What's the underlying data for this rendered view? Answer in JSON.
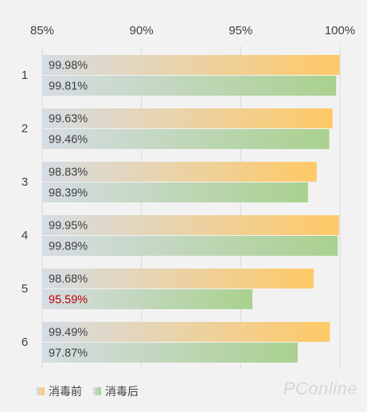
{
  "chart_data": {
    "type": "bar",
    "orientation": "horizontal",
    "categories": [
      "1",
      "2",
      "3",
      "4",
      "5",
      "6"
    ],
    "series": [
      {
        "name": "消毒前",
        "values": [
          99.98,
          99.63,
          98.83,
          99.95,
          98.68,
          99.49
        ],
        "labels": [
          "99.98%",
          "99.63%",
          "98.83%",
          "99.95%",
          "98.68%",
          "99.49%"
        ]
      },
      {
        "name": "消毒后",
        "values": [
          99.81,
          99.46,
          98.39,
          99.89,
          95.59,
          97.87
        ],
        "labels": [
          "99.81%",
          "99.46%",
          "98.39%",
          "99.89%",
          "95.59%",
          "97.87%"
        ]
      }
    ],
    "xlim": [
      85,
      100
    ],
    "xticks": [
      85,
      90,
      95,
      100
    ],
    "xtick_labels": [
      "85%",
      "90%",
      "95%",
      "100%"
    ],
    "highlighted_label_color": "#c00000",
    "series_colors": [
      "#ffc966",
      "#a9d18e"
    ],
    "gradient_start_color": "#d6dce4",
    "grid": "vertical",
    "legend_position": "bottom-left",
    "title": "",
    "xlabel": "",
    "ylabel": ""
  },
  "watermark": "PConline"
}
